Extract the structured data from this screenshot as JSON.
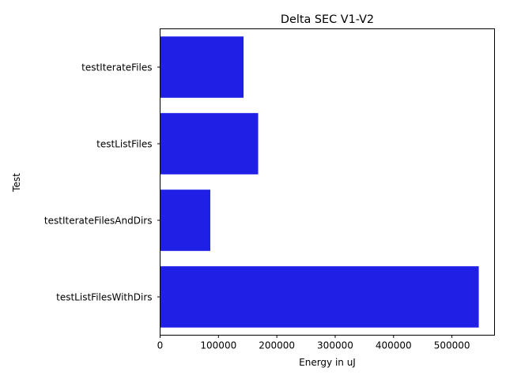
{
  "chart_data": {
    "type": "bar",
    "orientation": "horizontal",
    "title": "Delta SEC V1-V2",
    "xlabel": "Energy in uJ",
    "ylabel": "Test",
    "categories": [
      "testIterateFiles",
      "testListFiles",
      "testIterateFilesAndDirs",
      "testListFilesWithDirs"
    ],
    "values": [
      143000,
      168000,
      86000,
      546000
    ],
    "xlim": [
      0,
      573000
    ],
    "xticks": [
      0,
      100000,
      200000,
      300000,
      400000,
      500000
    ],
    "xtick_labels": [
      "0",
      "100000",
      "200000",
      "300000",
      "400000",
      "500000"
    ],
    "grid": false,
    "legend": "none",
    "colors": {
      "bar": "#1f1fe6",
      "axis": "#000000",
      "background": "#ffffff"
    }
  }
}
